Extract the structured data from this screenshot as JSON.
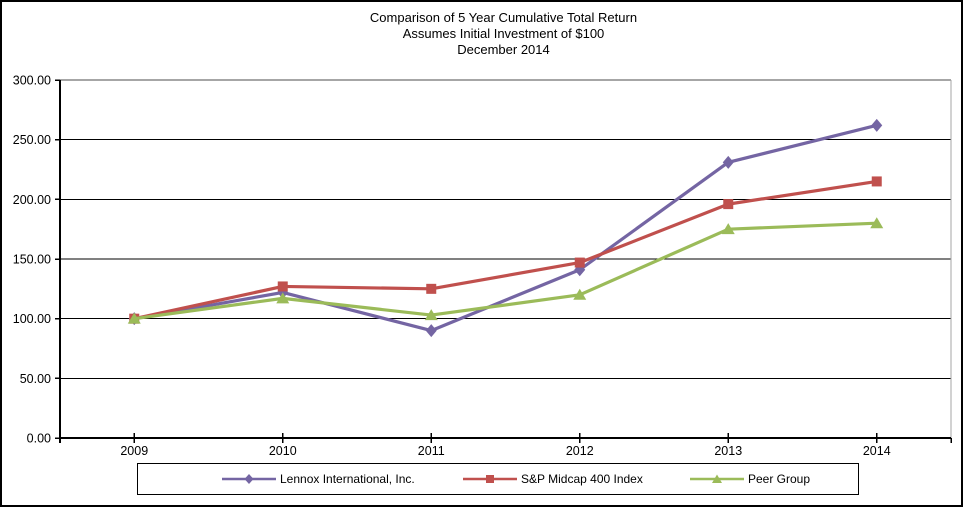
{
  "title": {
    "line1": "Comparison of 5 Year Cumulative Total Return",
    "line2": "Assumes Initial Investment of $100",
    "line3": "December 2014"
  },
  "chart_data": {
    "type": "line",
    "categories": [
      "2009",
      "2010",
      "2011",
      "2012",
      "2013",
      "2014"
    ],
    "series": [
      {
        "name": "Lennox International, Inc.",
        "values": [
          100,
          122,
          90,
          141,
          231,
          262
        ],
        "color": "#7465A3",
        "marker": "diamond"
      },
      {
        "name": "S&P Midcap 400 Index",
        "values": [
          100,
          127,
          125,
          147,
          196,
          215
        ],
        "color": "#C0504D",
        "marker": "square"
      },
      {
        "name": "Peer Group",
        "values": [
          100,
          117,
          103,
          120,
          175,
          180
        ],
        "color": "#9BBB59",
        "marker": "triangle"
      }
    ],
    "ylim": [
      0,
      300
    ],
    "ystep": 50,
    "ytick_labels": [
      "0.00",
      "50.00",
      "100.00",
      "150.00",
      "200.00",
      "250.00",
      "300.00"
    ],
    "grid": "horizontal",
    "legend_position": "bottom",
    "axis_color": "#000000",
    "gridline_color": "#000000",
    "plot_border_color": "#a6a6a6"
  }
}
